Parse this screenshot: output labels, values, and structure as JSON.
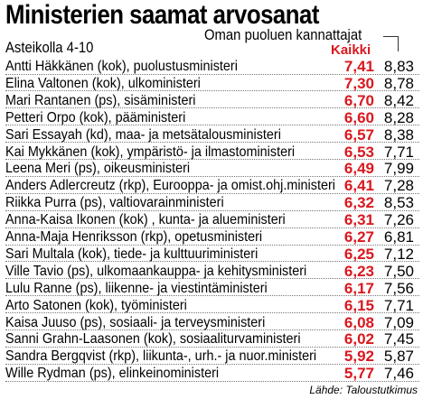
{
  "chart_data": {
    "type": "table",
    "title": "Ministerien saamat arvosanat",
    "subtitle": "Asteikolla 4-10",
    "columns": [
      "Kaikki",
      "Oman puoluen kannattajat"
    ],
    "rows": [
      {
        "name": "Antti Häkkänen (kok), puolustusministeri",
        "all": "7,41",
        "party": "8,83"
      },
      {
        "name": "Elina Valtonen (kok), ulkoministeri",
        "all": "7,30",
        "party": "8,78"
      },
      {
        "name": "Mari Rantanen (ps), sisäministeri",
        "all": "6,70",
        "party": "8,42"
      },
      {
        "name": "Petteri Orpo (kok), pääministeri",
        "all": "6,60",
        "party": "8,28"
      },
      {
        "name": "Sari Essayah (kd), maa- ja metsätalousministeri",
        "all": "6,57",
        "party": "8,38"
      },
      {
        "name": "Kai Mykkänen (kok), ympäristö- ja ilmastoministeri",
        "all": "6,53",
        "party": "7,71"
      },
      {
        "name": "Leena Meri (ps), oikeusministeri",
        "all": "6,49",
        "party": "7,99"
      },
      {
        "name": "Anders Adlercreutz (rkp), Eurooppa- ja omist.ohj.ministeri",
        "all": "6,41",
        "party": "7,28"
      },
      {
        "name": "Riikka Purra (ps), valtiovarainministeri",
        "all": "6,32",
        "party": "8,53"
      },
      {
        "name": "Anna-Kaisa Ikonen (kok) , kunta- ja alueministeri",
        "all": "6,31",
        "party": "7,26"
      },
      {
        "name": "Anna-Maja Henriksson (rkp), opetusministeri",
        "all": "6,27",
        "party": "6,81"
      },
      {
        "name": "Sari Multala (kok), tiede- ja kulttuuriministeri",
        "all": "6,25",
        "party": "7,12"
      },
      {
        "name": "Ville Tavio (ps), ulkomaankauppa- ja kehitysministeri",
        "all": "6,23",
        "party": "7,50"
      },
      {
        "name": "Lulu Ranne (ps), liikenne- ja viestintäministeri",
        "all": "6,17",
        "party": "7,56"
      },
      {
        "name": "Arto Satonen (kok), työministeri",
        "all": "6,15",
        "party": "7,71"
      },
      {
        "name": "Kaisa Juuso (ps), sosiaali- ja terveysministeri",
        "all": "6,08",
        "party": "7,09"
      },
      {
        "name": "Sanni Grahn-Laasonen (kok), sosiaaliturvaministeri",
        "all": "6,02",
        "party": "7,45"
      },
      {
        "name": "Sandra Bergqvist (rkp), liikunta-, urh.- ja nuor.ministeri",
        "all": "5,92",
        "party": "5,87"
      },
      {
        "name": "Wille Rydman (ps), elinkeinoministeri",
        "all": "5,77",
        "party": "7,46"
      }
    ],
    "source": "Lähde: Taloustutkimus"
  },
  "colors": {
    "accent": "#d9181e",
    "text": "#000000",
    "background": "#ffffff"
  }
}
